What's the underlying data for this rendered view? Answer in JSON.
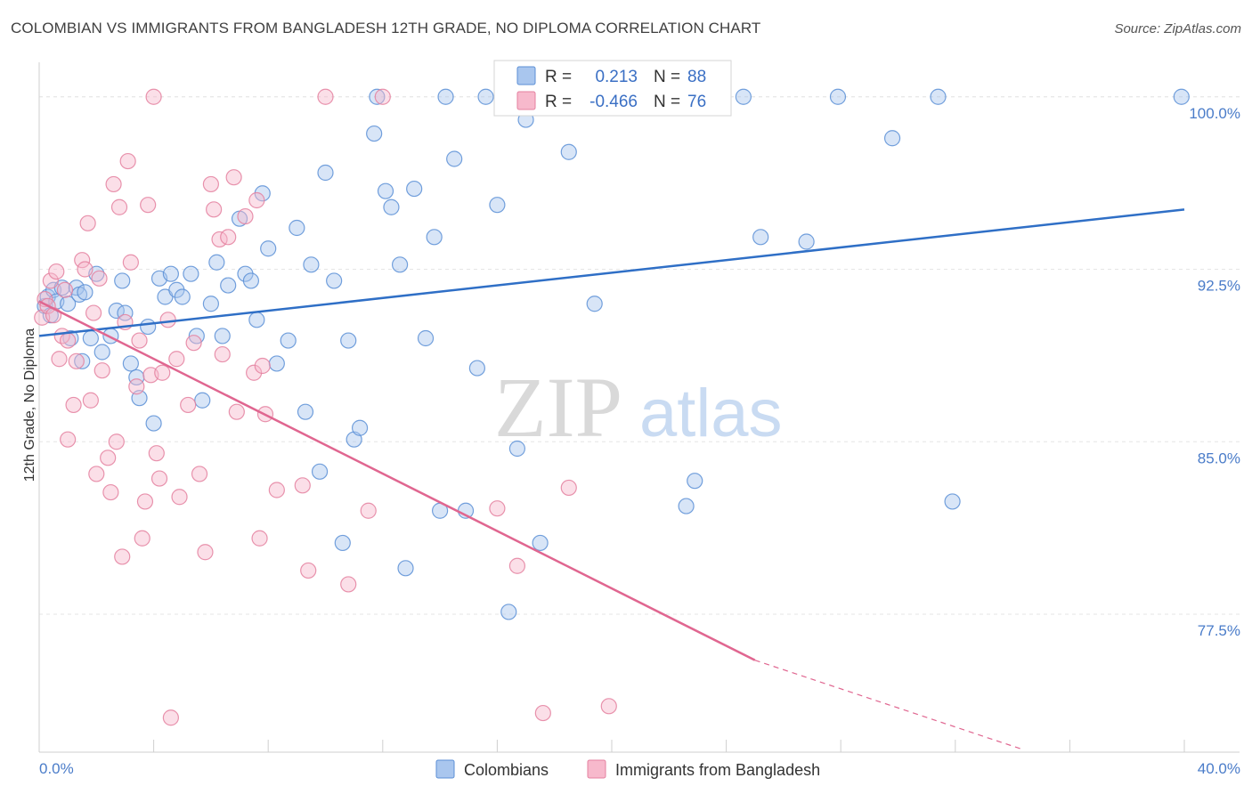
{
  "header": {
    "title": "COLOMBIAN VS IMMIGRANTS FROM BANGLADESH 12TH GRADE, NO DIPLOMA CORRELATION CHART",
    "source": "Source: ZipAtlas.com"
  },
  "colors": {
    "blue_fill": "#a9c6ee",
    "blue_stroke": "#5b8fd6",
    "blue_line": "#2f6fc6",
    "pink_fill": "#f7b9cc",
    "pink_stroke": "#e4809f",
    "pink_line": "#e06690",
    "grid": "#e6e6e6",
    "tick_text": "#4a7cc9"
  },
  "chart_data": {
    "type": "scatter",
    "title": "COLOMBIAN VS IMMIGRANTS FROM BANGLADESH 12TH GRADE, NO DIPLOMA CORRELATION CHART",
    "ylabel": "12th Grade, No Diploma",
    "xlim": [
      0,
      40
    ],
    "ylim": [
      71.5,
      101.5
    ],
    "x_tick_labels": [
      "0.0%",
      "40.0%"
    ],
    "y_ticks": [
      77.5,
      85.0,
      92.5,
      100.0
    ],
    "y_tick_labels": [
      "77.5%",
      "85.0%",
      "92.5%",
      "100.0%"
    ],
    "grid": true,
    "legend_placement": "top-center",
    "legend": [
      {
        "r_label": "R =",
        "r_value": "0.213",
        "n_label": "N =",
        "n_value": "88"
      },
      {
        "r_label": "R =",
        "r_value": "-0.466",
        "n_label": "N =",
        "n_value": "76"
      }
    ],
    "watermark": {
      "zip": "ZIP",
      "atlas": "atlas"
    },
    "series": [
      {
        "name": "Colombians",
        "color": "#a9c6ee",
        "trend": {
          "x": [
            0,
            40
          ],
          "y": [
            89.6,
            95.1
          ]
        },
        "points": [
          [
            0.2,
            90.9
          ],
          [
            0.3,
            91.3
          ],
          [
            0.5,
            91.6
          ],
          [
            0.6,
            91.1
          ],
          [
            0.4,
            90.5
          ],
          [
            0.8,
            91.7
          ],
          [
            1.0,
            91.0
          ],
          [
            1.1,
            89.5
          ],
          [
            1.3,
            91.7
          ],
          [
            1.4,
            91.4
          ],
          [
            1.5,
            88.5
          ],
          [
            1.6,
            91.5
          ],
          [
            1.8,
            89.5
          ],
          [
            2.0,
            92.3
          ],
          [
            2.2,
            88.9
          ],
          [
            2.5,
            89.6
          ],
          [
            2.7,
            90.7
          ],
          [
            2.9,
            92.0
          ],
          [
            3.0,
            90.6
          ],
          [
            3.2,
            88.4
          ],
          [
            3.4,
            87.8
          ],
          [
            3.5,
            86.9
          ],
          [
            3.8,
            90.0
          ],
          [
            4.0,
            85.8
          ],
          [
            4.2,
            92.1
          ],
          [
            4.4,
            91.3
          ],
          [
            4.6,
            92.3
          ],
          [
            4.8,
            91.6
          ],
          [
            5.0,
            91.3
          ],
          [
            5.3,
            92.3
          ],
          [
            5.5,
            89.6
          ],
          [
            5.7,
            86.8
          ],
          [
            6.0,
            91.0
          ],
          [
            6.2,
            92.8
          ],
          [
            6.4,
            89.6
          ],
          [
            6.6,
            91.8
          ],
          [
            7.0,
            94.7
          ],
          [
            7.2,
            92.3
          ],
          [
            7.4,
            92.0
          ],
          [
            7.6,
            90.3
          ],
          [
            7.8,
            95.8
          ],
          [
            8.0,
            93.4
          ],
          [
            8.3,
            88.4
          ],
          [
            8.7,
            89.4
          ],
          [
            9.0,
            94.3
          ],
          [
            9.3,
            86.3
          ],
          [
            9.5,
            92.7
          ],
          [
            9.8,
            83.7
          ],
          [
            10.0,
            96.7
          ],
          [
            10.3,
            92.0
          ],
          [
            10.6,
            80.6
          ],
          [
            10.8,
            89.4
          ],
          [
            11.0,
            85.1
          ],
          [
            11.2,
            85.6
          ],
          [
            11.7,
            98.4
          ],
          [
            11.8,
            100.0
          ],
          [
            12.1,
            95.9
          ],
          [
            12.3,
            95.2
          ],
          [
            12.6,
            92.7
          ],
          [
            12.8,
            79.5
          ],
          [
            13.1,
            96.0
          ],
          [
            13.5,
            89.5
          ],
          [
            13.8,
            93.9
          ],
          [
            14.0,
            82.0
          ],
          [
            14.2,
            100.0
          ],
          [
            14.5,
            97.3
          ],
          [
            14.9,
            82.0
          ],
          [
            15.3,
            88.2
          ],
          [
            15.6,
            100.0
          ],
          [
            16.0,
            95.3
          ],
          [
            16.4,
            77.6
          ],
          [
            16.7,
            84.7
          ],
          [
            17.0,
            99.0
          ],
          [
            17.5,
            80.6
          ],
          [
            17.8,
            100.0
          ],
          [
            18.5,
            97.6
          ],
          [
            19.4,
            91.0
          ],
          [
            20.4,
            100.0
          ],
          [
            22.6,
            82.2
          ],
          [
            22.9,
            83.3
          ],
          [
            24.6,
            100.0
          ],
          [
            25.2,
            93.9
          ],
          [
            26.8,
            93.7
          ],
          [
            27.9,
            100.0
          ],
          [
            29.8,
            98.2
          ],
          [
            31.4,
            100.0
          ],
          [
            31.9,
            82.4
          ],
          [
            39.9,
            100.0
          ]
        ]
      },
      {
        "name": "Immigrants from Bangladesh",
        "color": "#f7b9cc",
        "trend": {
          "x": [
            0,
            25.0
          ],
          "y": [
            91.1,
            75.5
          ]
        },
        "trend_dashed": {
          "x": [
            25.0,
            34.4
          ],
          "y": [
            75.5,
            71.6
          ]
        },
        "points": [
          [
            0.1,
            90.4
          ],
          [
            0.2,
            91.2
          ],
          [
            0.3,
            90.9
          ],
          [
            0.4,
            92.0
          ],
          [
            0.5,
            90.5
          ],
          [
            0.6,
            92.4
          ],
          [
            0.7,
            88.6
          ],
          [
            0.8,
            89.6
          ],
          [
            0.9,
            91.6
          ],
          [
            1.0,
            89.4
          ],
          [
            1.0,
            85.1
          ],
          [
            1.2,
            86.6
          ],
          [
            1.3,
            88.5
          ],
          [
            1.5,
            92.9
          ],
          [
            1.6,
            92.5
          ],
          [
            1.7,
            94.5
          ],
          [
            1.8,
            86.8
          ],
          [
            1.9,
            90.6
          ],
          [
            2.0,
            83.6
          ],
          [
            2.1,
            92.1
          ],
          [
            2.2,
            88.1
          ],
          [
            2.4,
            84.3
          ],
          [
            2.5,
            82.8
          ],
          [
            2.6,
            96.2
          ],
          [
            2.7,
            85.0
          ],
          [
            2.8,
            95.2
          ],
          [
            2.9,
            80.0
          ],
          [
            3.0,
            90.2
          ],
          [
            3.1,
            97.2
          ],
          [
            3.2,
            92.8
          ],
          [
            3.4,
            87.4
          ],
          [
            3.5,
            89.4
          ],
          [
            3.6,
            80.8
          ],
          [
            3.7,
            82.4
          ],
          [
            3.8,
            95.3
          ],
          [
            3.9,
            87.9
          ],
          [
            4.0,
            100.0
          ],
          [
            4.1,
            84.5
          ],
          [
            4.2,
            83.4
          ],
          [
            4.3,
            88.0
          ],
          [
            4.5,
            90.3
          ],
          [
            4.6,
            73.0
          ],
          [
            4.8,
            88.6
          ],
          [
            4.9,
            82.6
          ],
          [
            5.2,
            86.6
          ],
          [
            5.4,
            89.3
          ],
          [
            5.6,
            83.6
          ],
          [
            5.8,
            80.2
          ],
          [
            6.0,
            96.2
          ],
          [
            6.1,
            95.1
          ],
          [
            6.3,
            93.8
          ],
          [
            6.4,
            88.8
          ],
          [
            6.6,
            93.9
          ],
          [
            6.8,
            96.5
          ],
          [
            6.9,
            86.3
          ],
          [
            7.2,
            94.8
          ],
          [
            7.5,
            88.0
          ],
          [
            7.6,
            95.5
          ],
          [
            7.7,
            80.8
          ],
          [
            7.8,
            88.3
          ],
          [
            7.9,
            86.2
          ],
          [
            8.3,
            82.9
          ],
          [
            9.2,
            83.1
          ],
          [
            9.4,
            79.4
          ],
          [
            10.0,
            100.0
          ],
          [
            10.8,
            78.8
          ],
          [
            11.5,
            82.0
          ],
          [
            12.0,
            100.0
          ],
          [
            16.0,
            82.1
          ],
          [
            16.7,
            79.6
          ],
          [
            17.6,
            73.2
          ],
          [
            18.5,
            83.0
          ],
          [
            19.9,
            73.5
          ],
          [
            20.4,
            100.0
          ],
          [
            20.5,
            100.0
          ],
          [
            20.6,
            100.0
          ]
        ]
      }
    ]
  }
}
